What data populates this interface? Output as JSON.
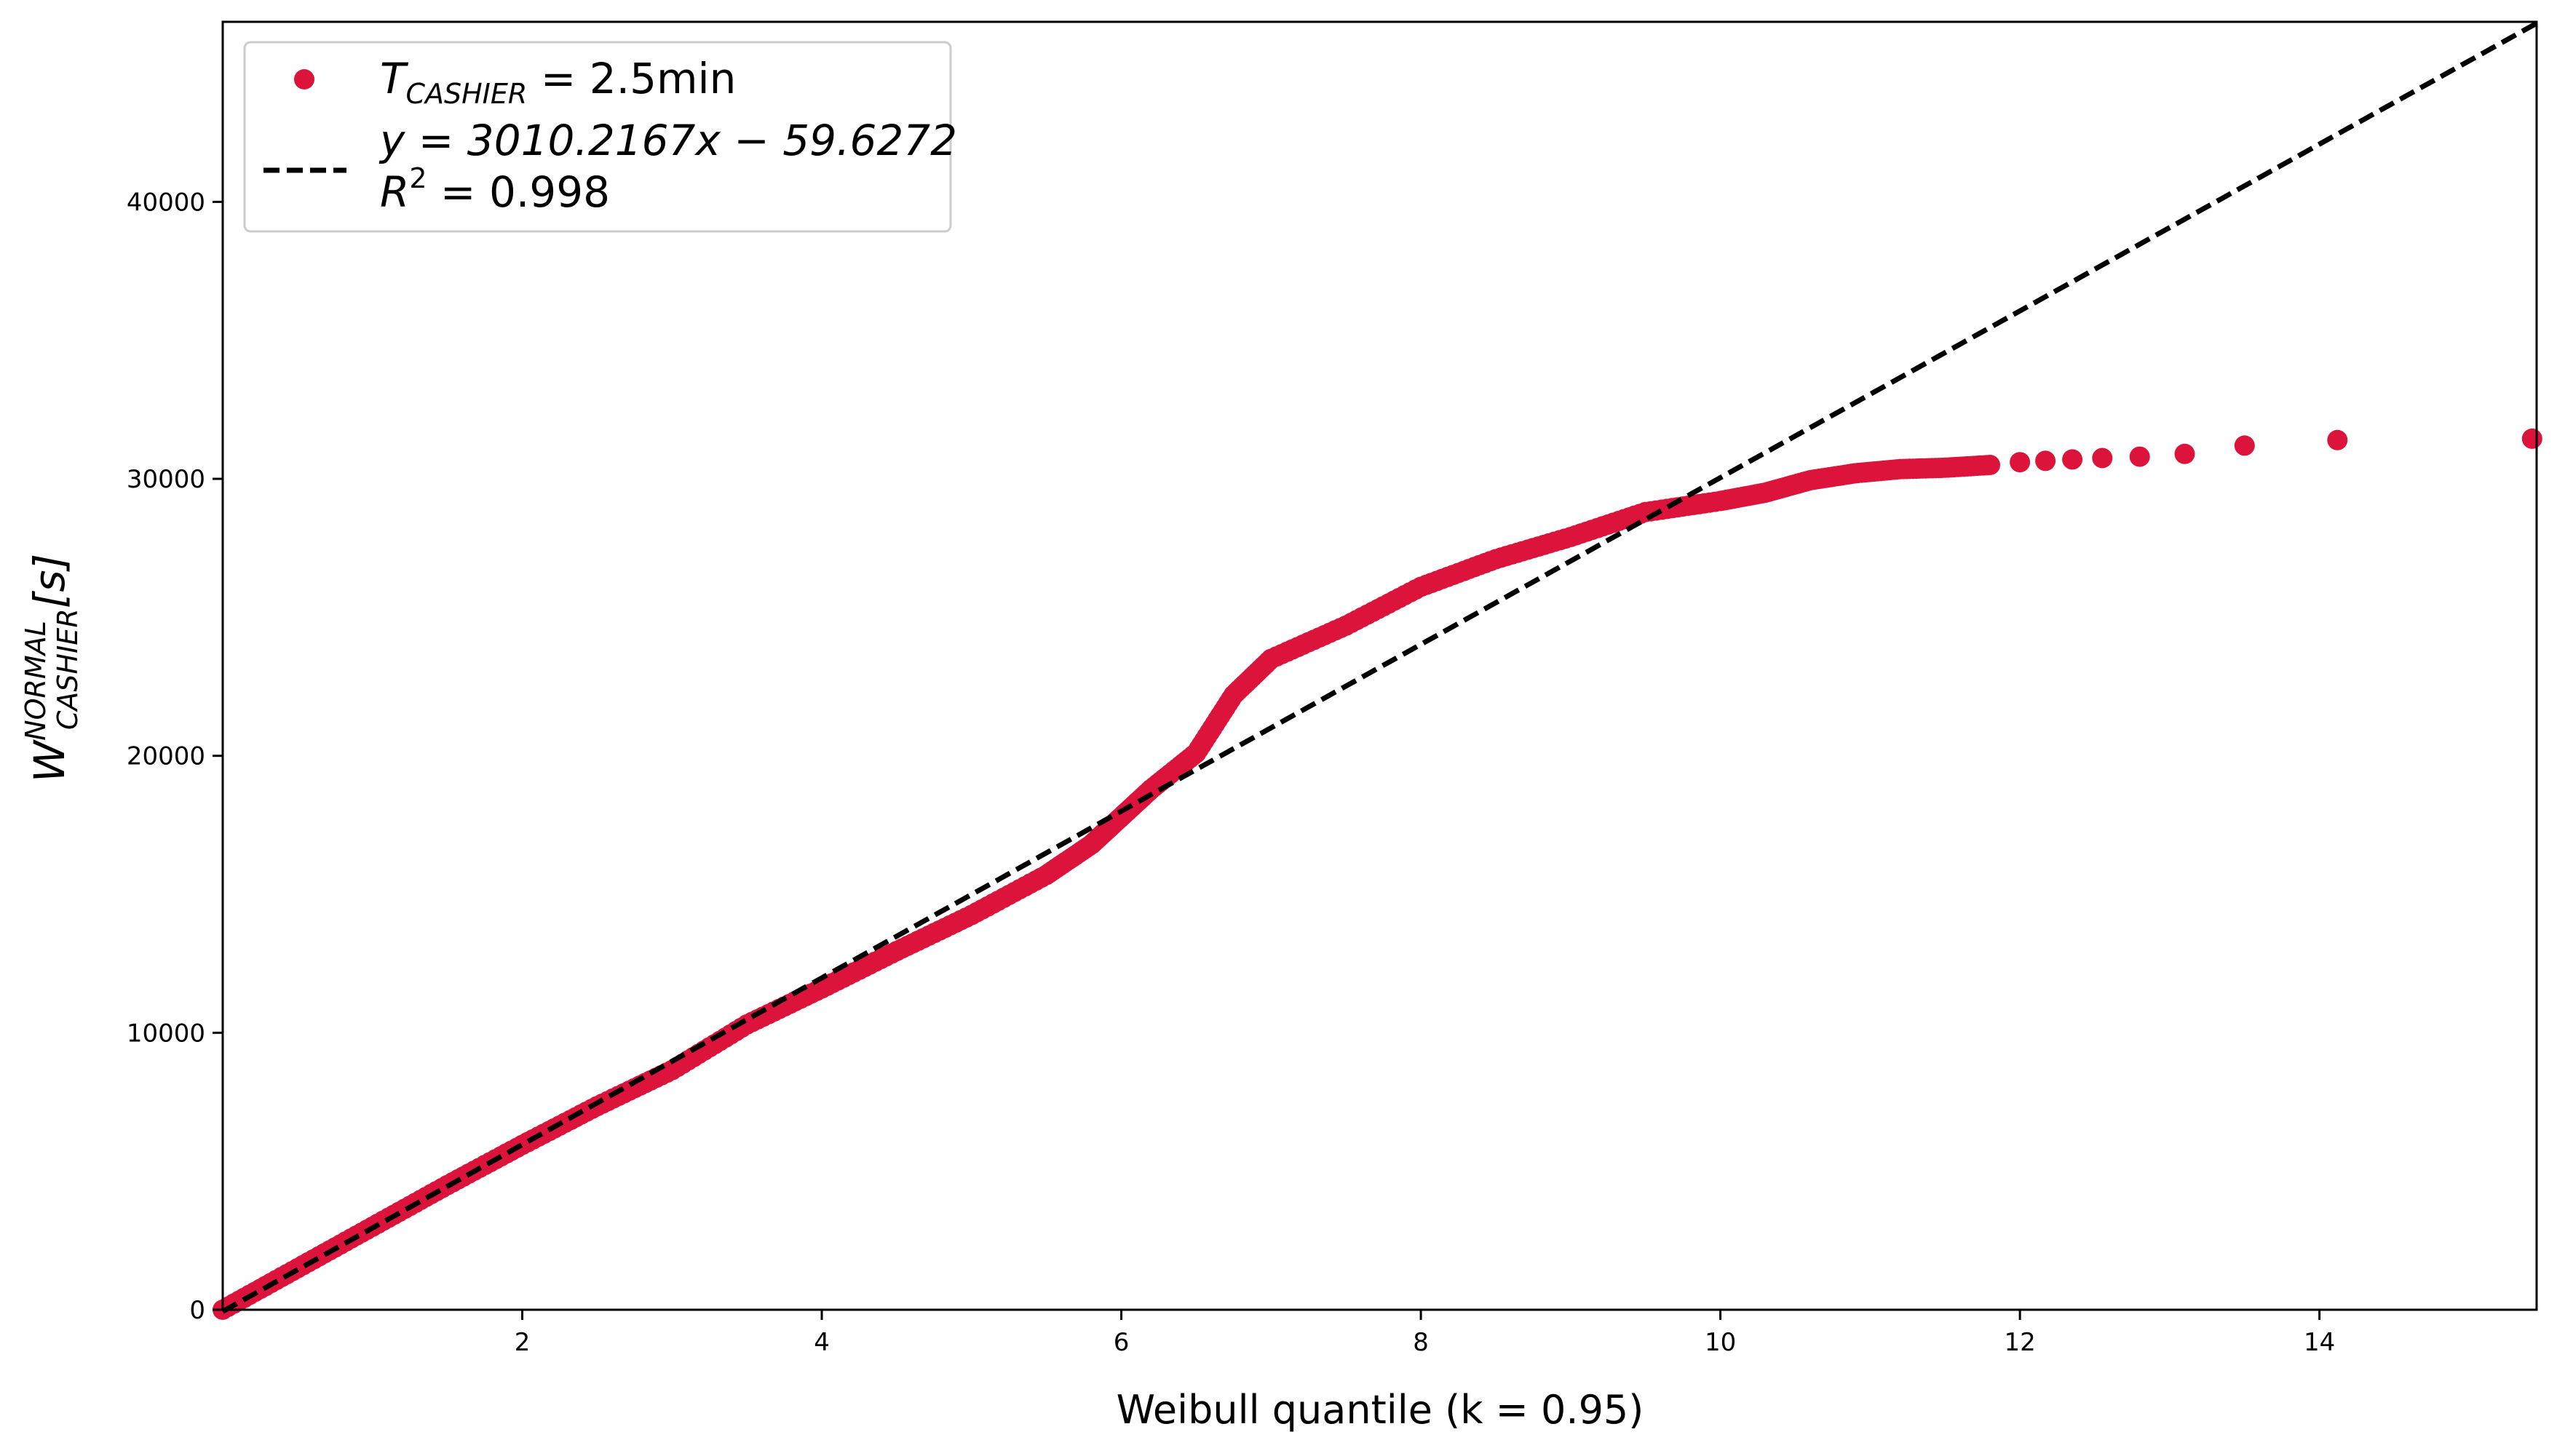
{
  "chart_data": {
    "type": "scatter",
    "xlabel": "Weibull quantile (k = 0.95)",
    "ylabel": {
      "base": "W",
      "superscript": "NORMAL",
      "subscript": "CASHIER",
      "suffix": "[s]"
    },
    "xlim": [
      0.0,
      15.45
    ],
    "ylim": [
      0,
      46500
    ],
    "x_ticks": [
      2,
      4,
      6,
      8,
      10,
      12,
      14
    ],
    "x_tick_labels": [
      "2",
      "4",
      "6",
      "8",
      "10",
      "12",
      "14"
    ],
    "y_ticks": [
      0,
      10000,
      20000,
      30000,
      40000
    ],
    "y_tick_labels": [
      "0",
      "10000",
      "20000",
      "30000",
      "40000"
    ],
    "grid": false,
    "legend_position": "top-left",
    "legend": {
      "series_label": {
        "base": "T",
        "subscript": "CASHIER",
        "rest": " = 2.5min"
      },
      "fit_label_line1": "y = 3010.2167x − 59.6272",
      "fit_label_line2": {
        "base": "R",
        "superscript": "2",
        "rest": " = 0.998"
      }
    },
    "series": [
      {
        "kind": "scatter",
        "color": "#dc143c",
        "dense_curve": [
          [
            0.0,
            0
          ],
          [
            0.5,
            1500
          ],
          [
            1.0,
            3000
          ],
          [
            1.5,
            4500
          ],
          [
            2.0,
            5950
          ],
          [
            2.5,
            7350
          ],
          [
            3.0,
            8650
          ],
          [
            3.5,
            10300
          ],
          [
            4.0,
            11600
          ],
          [
            4.5,
            12950
          ],
          [
            5.0,
            14250
          ],
          [
            5.5,
            15700
          ],
          [
            5.8,
            16800
          ],
          [
            6.0,
            17800
          ],
          [
            6.2,
            18800
          ],
          [
            6.5,
            20100
          ],
          [
            6.75,
            22200
          ],
          [
            7.0,
            23500
          ],
          [
            7.5,
            24700
          ],
          [
            8.0,
            26100
          ],
          [
            8.5,
            27100
          ],
          [
            9.0,
            27900
          ],
          [
            9.5,
            28800
          ],
          [
            10.0,
            29200
          ],
          [
            10.3,
            29500
          ],
          [
            10.6,
            29950
          ],
          [
            10.9,
            30200
          ],
          [
            11.2,
            30350
          ],
          [
            11.5,
            30400
          ],
          [
            11.8,
            30500
          ]
        ],
        "tail_points": [
          [
            12.0,
            30600
          ],
          [
            12.17,
            30650
          ],
          [
            12.35,
            30700
          ],
          [
            12.55,
            30750
          ],
          [
            12.8,
            30800
          ],
          [
            13.1,
            30900
          ],
          [
            13.5,
            31200
          ],
          [
            14.12,
            31400
          ],
          [
            15.42,
            31450
          ]
        ]
      },
      {
        "kind": "fit_line",
        "color": "#000000",
        "slope": 3010.2167,
        "intercept": -59.6272
      }
    ]
  }
}
